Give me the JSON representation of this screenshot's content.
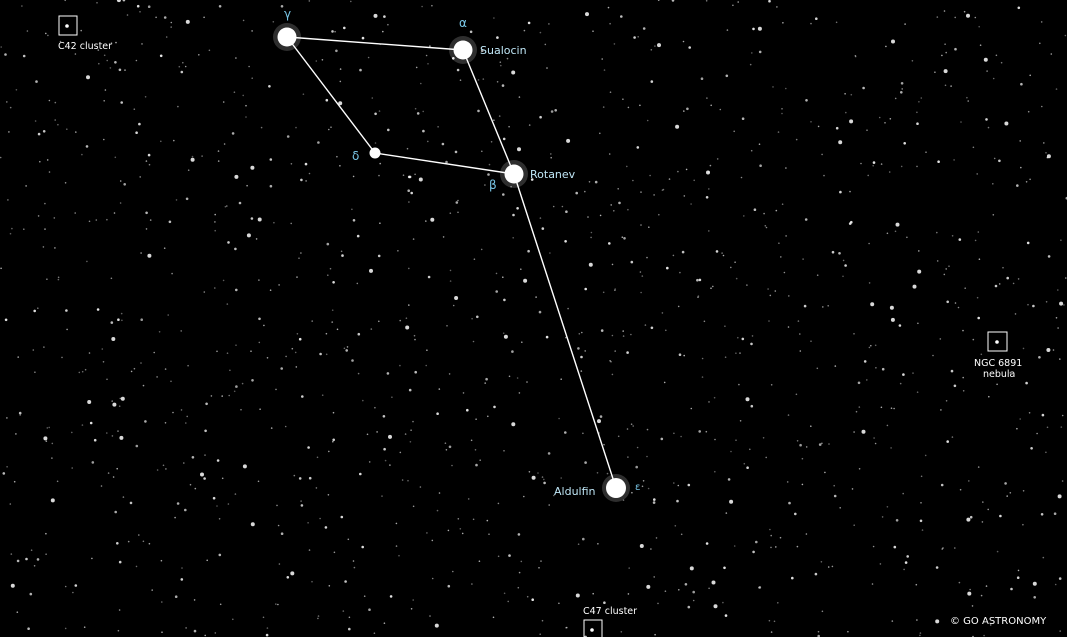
{
  "map": {
    "background_color": "#000000",
    "line_color": "#ffffff",
    "greek_label_color": "#79c6e6",
    "name_label_color": "#bfe6f6"
  },
  "stars": {
    "gamma": {
      "greek": "γ"
    },
    "alpha": {
      "greek": "α",
      "name": "Sualocin"
    },
    "delta": {
      "greek": "δ"
    },
    "beta": {
      "greek": "β",
      "name": "Rotanev"
    },
    "epsilon": {
      "greek": "ε",
      "name": "Aldulfin"
    }
  },
  "deep_sky": {
    "c42": {
      "label": "C42 cluster"
    },
    "ngc6891": {
      "label_line1": "NGC 6891",
      "label_line2": "nebula"
    },
    "c47": {
      "label": "C47 cluster"
    }
  },
  "copyright": "© GO ASTRONOMY"
}
